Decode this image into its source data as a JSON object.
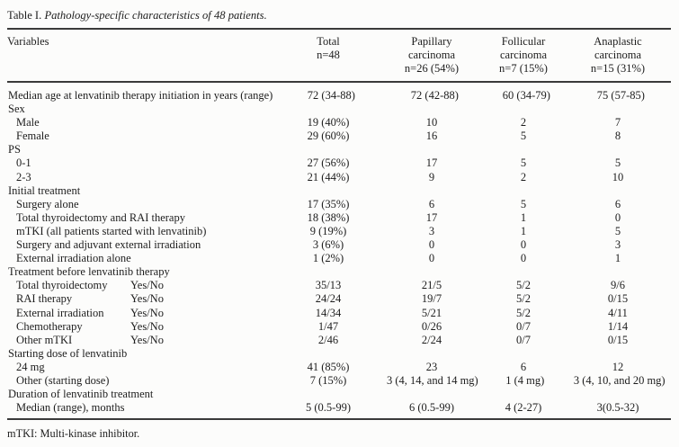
{
  "title": {
    "prefix": "Table I. ",
    "italic": "Pathology-specific characteristics of 48 patients."
  },
  "table": {
    "header": {
      "variables_label": "Variables",
      "columns": [
        {
          "id": "total",
          "lines": [
            "Total",
            "n=48"
          ]
        },
        {
          "id": "papillary",
          "lines": [
            "Papillary",
            "carcinoma",
            "n=26 (54%)"
          ]
        },
        {
          "id": "follicular",
          "lines": [
            "Follicular",
            "carcinoma",
            "n=7 (15%)"
          ]
        },
        {
          "id": "anaplastic",
          "lines": [
            "Anaplastic",
            "carcinoma",
            "n=15 (31%)"
          ]
        }
      ]
    },
    "rows": [
      {
        "label": "Median age at lenvatinib therapy initiation in years (range)",
        "indent": false,
        "sub": "",
        "total": "72 (34-88)",
        "papillary": "72 (42-88)",
        "follicular": "60 (34-79)",
        "anaplastic": "75 (57-85)"
      },
      {
        "label": "Sex",
        "indent": false,
        "sub": "",
        "total": "",
        "papillary": "",
        "follicular": "",
        "anaplastic": ""
      },
      {
        "label": "Male",
        "indent": true,
        "sub": "",
        "total": "19 (40%)",
        "papillary": "10",
        "follicular": "2",
        "anaplastic": "7"
      },
      {
        "label": "Female",
        "indent": true,
        "sub": "",
        "total": "29 (60%)",
        "papillary": "16",
        "follicular": "5",
        "anaplastic": "8"
      },
      {
        "label": "PS",
        "indent": false,
        "sub": "",
        "total": "",
        "papillary": "",
        "follicular": "",
        "anaplastic": ""
      },
      {
        "label": "0-1",
        "indent": true,
        "sub": "",
        "total": "27 (56%)",
        "papillary": "17",
        "follicular": "5",
        "anaplastic": "5"
      },
      {
        "label": "2-3",
        "indent": true,
        "sub": "",
        "total": "21 (44%)",
        "papillary": "9",
        "follicular": "2",
        "anaplastic": "10"
      },
      {
        "label": "Initial treatment",
        "indent": false,
        "sub": "",
        "total": "",
        "papillary": "",
        "follicular": "",
        "anaplastic": ""
      },
      {
        "label": "Surgery alone",
        "indent": true,
        "sub": "",
        "total": "17 (35%)",
        "papillary": "6",
        "follicular": "5",
        "anaplastic": "6"
      },
      {
        "label": "Total thyroidectomy and RAI therapy",
        "indent": true,
        "sub": "",
        "total": "18 (38%)",
        "papillary": "17",
        "follicular": "1",
        "anaplastic": "0"
      },
      {
        "label": "mTKI (all patients started with lenvatinib)",
        "indent": true,
        "sub": "",
        "total": "9 (19%)",
        "papillary": "3",
        "follicular": "1",
        "anaplastic": "5"
      },
      {
        "label": "Surgery and adjuvant external irradiation",
        "indent": true,
        "sub": "",
        "total": "3 (6%)",
        "papillary": "0",
        "follicular": "0",
        "anaplastic": "3"
      },
      {
        "label": "External irradiation alone",
        "indent": true,
        "sub": "",
        "total": "1 (2%)",
        "papillary": "0",
        "follicular": "0",
        "anaplastic": "1"
      },
      {
        "label": "Treatment before lenvatinib therapy",
        "indent": false,
        "sub": "",
        "total": "",
        "papillary": "",
        "follicular": "",
        "anaplastic": ""
      },
      {
        "label": "Total thyroidectomy",
        "indent": true,
        "sub": "Yes/No",
        "total": "35/13",
        "papillary": "21/5",
        "follicular": "5/2",
        "anaplastic": "9/6"
      },
      {
        "label": "RAI therapy",
        "indent": true,
        "sub": "Yes/No",
        "total": "24/24",
        "papillary": "19/7",
        "follicular": "5/2",
        "anaplastic": "0/15"
      },
      {
        "label": "External irradiation",
        "indent": true,
        "sub": "Yes/No",
        "total": "14/34",
        "papillary": "5/21",
        "follicular": "5/2",
        "anaplastic": "4/11"
      },
      {
        "label": "Chemotherapy",
        "indent": true,
        "sub": "Yes/No",
        "total": "1/47",
        "papillary": "0/26",
        "follicular": "0/7",
        "anaplastic": "1/14"
      },
      {
        "label": "Other mTKI",
        "indent": true,
        "sub": "Yes/No",
        "total": "2/46",
        "papillary": "2/24",
        "follicular": "0/7",
        "anaplastic": "0/15"
      },
      {
        "label": "Starting dose of lenvatinib",
        "indent": false,
        "sub": "",
        "total": "",
        "papillary": "",
        "follicular": "",
        "anaplastic": ""
      },
      {
        "label": "24 mg",
        "indent": true,
        "sub": "",
        "total": "41 (85%)",
        "papillary": "23",
        "follicular": "6",
        "anaplastic": "12"
      },
      {
        "label": "Other (starting dose)",
        "indent": true,
        "sub": "",
        "total": "7 (15%)",
        "papillary": "3 (4, 14, and 14 mg)",
        "follicular": "1 (4 mg)",
        "anaplastic": "3 (4, 10, and 20 mg)"
      },
      {
        "label": "Duration of lenvatinib treatment",
        "indent": false,
        "sub": "",
        "total": "",
        "papillary": "",
        "follicular": "",
        "anaplastic": ""
      },
      {
        "label": "Median (range), months",
        "indent": true,
        "sub": "",
        "total": "5 (0.5-99)",
        "papillary": "6 (0.5-99)",
        "follicular": "4 (2-27)",
        "anaplastic": "3(0.5-32)"
      }
    ]
  },
  "footnote": "mTKI: Multi-kinase inhibitor."
}
